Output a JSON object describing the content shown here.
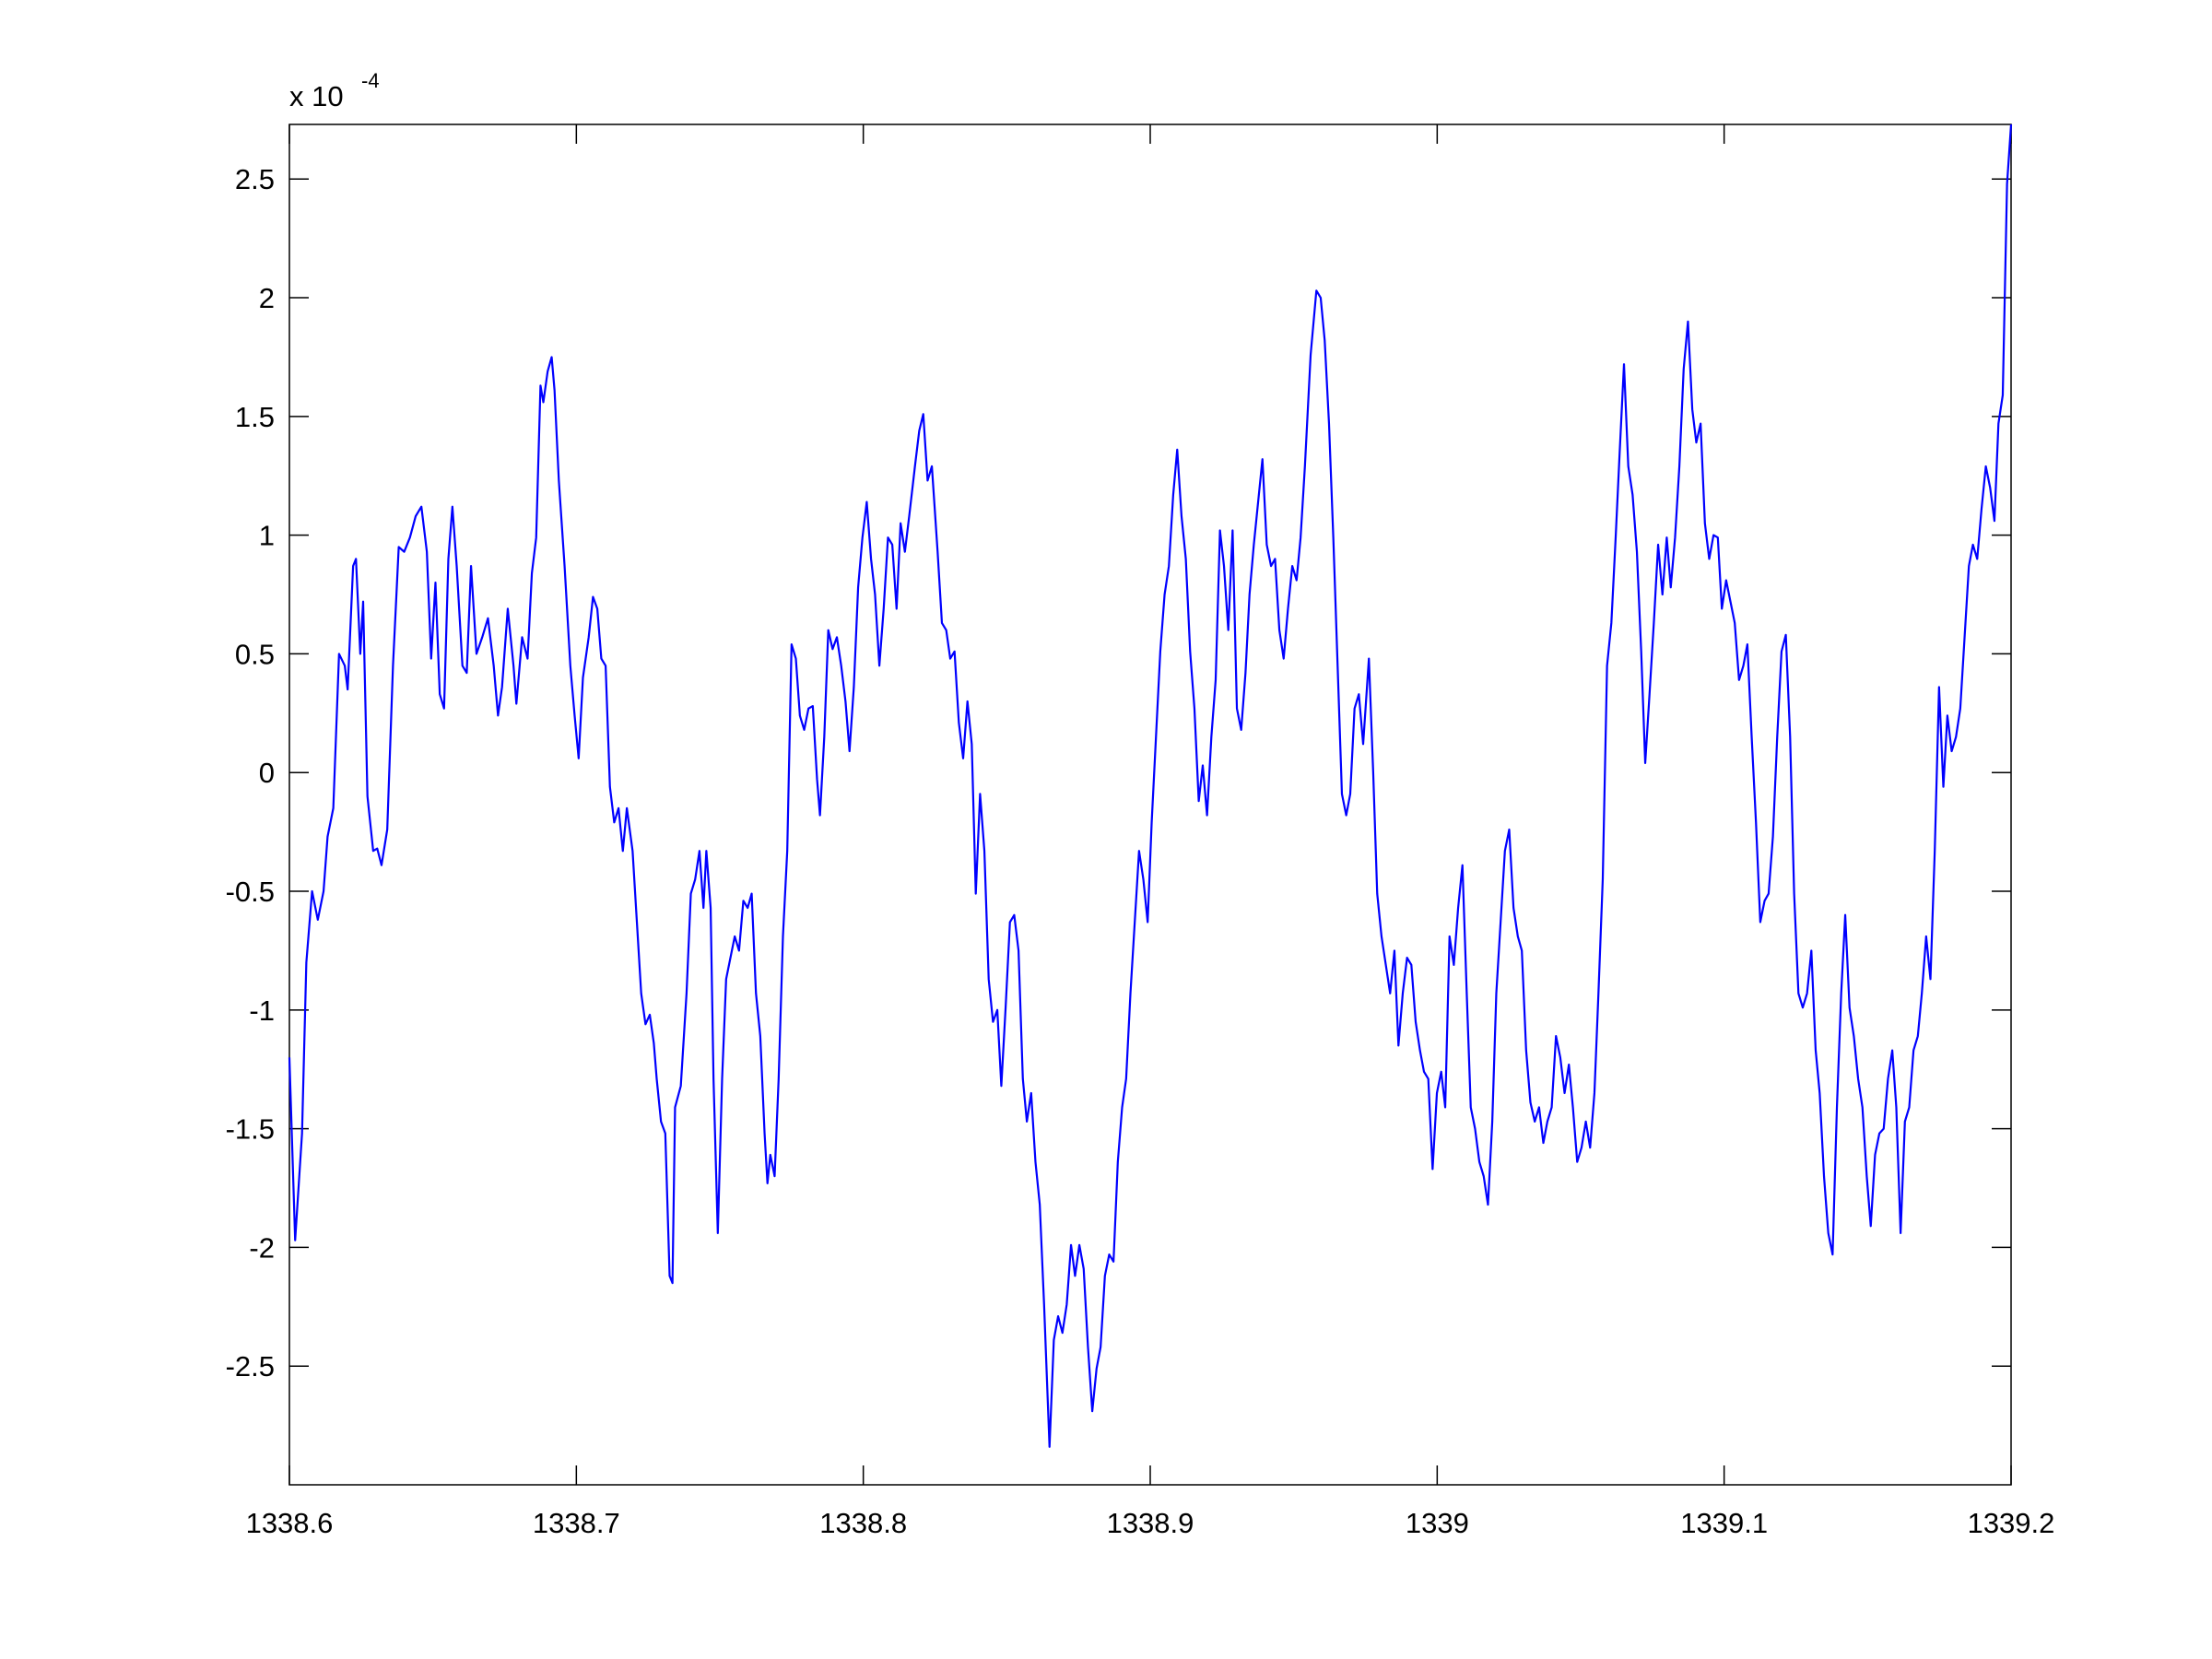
{
  "chart_data": {
    "type": "line",
    "y_multiplier": {
      "base": "x 10",
      "exponent": "-4"
    },
    "xlim": [
      1338.6,
      1339.2
    ],
    "xticks": [
      1338.6,
      1338.7,
      1338.8,
      1338.9,
      1339,
      1339.1,
      1339.2
    ],
    "ylim": [
      -3.0,
      2.73
    ],
    "yticks": [
      -2.5,
      -2,
      -1.5,
      -1,
      -0.5,
      0,
      0.5,
      1,
      1.5,
      2,
      2.5
    ],
    "grid": false,
    "series": [
      {
        "color": "#0000ff",
        "x": [
          1338.6,
          1338.602,
          1338.6044,
          1338.6059,
          1338.6079,
          1338.6099,
          1338.6119,
          1338.6133,
          1338.6153,
          1338.6173,
          1338.6193,
          1338.6203,
          1338.6222,
          1338.6232,
          1338.6247,
          1338.6257,
          1338.6272,
          1338.6292,
          1338.6306,
          1338.6321,
          1338.6341,
          1338.6361,
          1338.6381,
          1338.64,
          1338.642,
          1338.644,
          1338.646,
          1338.6479,
          1338.6494,
          1338.6509,
          1338.6524,
          1338.6539,
          1338.6554,
          1338.6568,
          1338.6583,
          1338.6603,
          1338.6618,
          1338.6633,
          1338.6652,
          1338.6672,
          1338.6692,
          1338.6712,
          1338.6727,
          1338.6741,
          1338.6761,
          1338.6781,
          1338.6791,
          1338.6811,
          1338.683,
          1338.6845,
          1338.686,
          1338.6875,
          1338.6885,
          1338.69,
          1338.6914,
          1338.6924,
          1338.6939,
          1338.6959,
          1338.6979,
          1338.6994,
          1338.7008,
          1338.7023,
          1338.7043,
          1338.7058,
          1338.7073,
          1338.7087,
          1338.7102,
          1338.7117,
          1338.7132,
          1338.7147,
          1338.7162,
          1338.7176,
          1338.7196,
          1338.7211,
          1338.7226,
          1338.7241,
          1338.7256,
          1338.727,
          1338.728,
          1338.7295,
          1338.731,
          1338.7325,
          1338.7335,
          1338.7344,
          1338.7364,
          1338.7384,
          1338.7399,
          1338.7414,
          1338.7429,
          1338.7443,
          1338.7453,
          1338.7468,
          1338.7478,
          1338.7493,
          1338.7508,
          1338.7522,
          1338.7537,
          1338.7552,
          1338.7567,
          1338.7582,
          1338.7597,
          1338.7611,
          1338.7626,
          1338.7641,
          1338.7656,
          1338.7666,
          1338.7676,
          1338.7691,
          1338.7705,
          1338.772,
          1338.7735,
          1338.775,
          1338.7765,
          1338.7779,
          1338.7794,
          1338.7809,
          1338.7824,
          1338.7839,
          1338.7849,
          1338.7864,
          1338.7878,
          1338.7893,
          1338.7908,
          1338.7923,
          1338.7938,
          1338.7952,
          1338.7967,
          1338.7982,
          1338.7997,
          1338.8012,
          1338.8027,
          1338.8041,
          1338.8056,
          1338.8071,
          1338.8086,
          1338.8101,
          1338.8116,
          1338.813,
          1338.8145,
          1338.816,
          1338.818,
          1338.8195,
          1338.8209,
          1338.8224,
          1338.8239,
          1338.8259,
          1338.8274,
          1338.8289,
          1338.8303,
          1338.8318,
          1338.8333,
          1338.8348,
          1338.8363,
          1338.8378,
          1338.8392,
          1338.8407,
          1338.8422,
          1338.8437,
          1338.8452,
          1338.8467,
          1338.8481,
          1338.8496,
          1338.8511,
          1338.8526,
          1338.8541,
          1338.8556,
          1338.857,
          1338.8585,
          1338.86,
          1338.8615,
          1338.863,
          1338.8649,
          1338.8664,
          1338.8679,
          1338.8694,
          1338.8709,
          1338.8724,
          1338.8738,
          1338.8753,
          1338.8768,
          1338.8783,
          1338.8798,
          1338.8813,
          1338.8827,
          1338.8842,
          1338.8857,
          1338.8872,
          1338.8887,
          1338.8902,
          1338.8916,
          1338.8931,
          1338.8946,
          1338.8961,
          1338.8976,
          1338.8991,
          1338.9005,
          1338.902,
          1338.9035,
          1338.905,
          1338.9065,
          1338.908,
          1338.9094,
          1338.9109,
          1338.9124,
          1338.9139,
          1338.9154,
          1338.9169,
          1338.9183,
          1338.9198,
          1338.9213,
          1338.9228,
          1338.9243,
          1338.9257,
          1338.9272,
          1338.9287,
          1338.9302,
          1338.9317,
          1338.9332,
          1338.9346,
          1338.9361,
          1338.9376,
          1338.9391,
          1338.9406,
          1338.9421,
          1338.9435,
          1338.945,
          1338.9465,
          1338.948,
          1338.9495,
          1338.951,
          1338.9524,
          1338.9539,
          1338.9559,
          1338.9579,
          1338.9594,
          1338.9608,
          1338.9623,
          1338.9638,
          1338.9653,
          1338.9668,
          1338.9683,
          1338.9697,
          1338.9712,
          1338.9727,
          1338.9742,
          1338.9762,
          1338.9777,
          1338.9791,
          1338.9806,
          1338.9821,
          1338.9836,
          1338.9851,
          1338.9865,
          1338.988,
          1338.9895,
          1338.991,
          1338.9925,
          1338.994,
          1338.9954,
          1338.9969,
          1338.9984,
          1338.9999,
          1339.0014,
          1339.0028,
          1339.0043,
          1339.0058,
          1339.0073,
          1339.0088,
          1339.0103,
          1339.0117,
          1339.0132,
          1339.0147,
          1339.0162,
          1339.0177,
          1339.0192,
          1339.0206,
          1339.0221,
          1339.0236,
          1339.0251,
          1339.0266,
          1339.0281,
          1339.0295,
          1339.031,
          1339.0325,
          1339.034,
          1339.0355,
          1339.037,
          1339.0384,
          1339.0399,
          1339.0414,
          1339.0429,
          1339.0444,
          1339.0459,
          1339.0473,
          1339.0488,
          1339.0503,
          1339.0518,
          1339.0533,
          1339.0548,
          1339.0562,
          1339.0577,
          1339.0592,
          1339.0607,
          1339.0622,
          1339.0636,
          1339.0651,
          1339.0666,
          1339.0681,
          1339.0696,
          1339.0711,
          1339.0725,
          1339.074,
          1339.0755,
          1339.077,
          1339.0785,
          1339.08,
          1339.0814,
          1339.0829,
          1339.0844,
          1339.0859,
          1339.0874,
          1339.0889,
          1339.0903,
          1339.0918,
          1339.0933,
          1339.0948,
          1339.0963,
          1339.0978,
          1339.0992,
          1339.1007,
          1339.1022,
          1339.1037,
          1339.1052,
          1339.1067,
          1339.1081,
          1339.1096,
          1339.1111,
          1339.1126,
          1339.1141,
          1339.1155,
          1339.117,
          1339.1185,
          1339.12,
          1339.1215,
          1339.123,
          1339.1244,
          1339.1259,
          1339.1274,
          1339.1289,
          1339.1304,
          1339.1319,
          1339.1333,
          1339.1348,
          1339.1363,
          1339.1378,
          1339.1393,
          1339.1408,
          1339.1422,
          1339.1437,
          1339.1452,
          1339.1467,
          1339.1482,
          1339.1497,
          1339.1511,
          1339.1526,
          1339.1541,
          1339.1556,
          1339.1571,
          1339.1586,
          1339.16,
          1339.1615,
          1339.163,
          1339.1645,
          1339.166,
          1339.1675,
          1339.1689,
          1339.1704,
          1339.1719,
          1339.1734,
          1339.1749,
          1339.1764,
          1339.1778,
          1339.1793,
          1339.1808,
          1339.1823,
          1339.1838,
          1339.1853,
          1339.1867,
          1339.1882,
          1339.1897,
          1339.1912,
          1339.1927,
          1339.1942,
          1339.1956,
          1339.1971,
          1339.1986,
          1339.2
        ],
        "values": [
          -1.2,
          -1.97,
          -1.52,
          -0.8,
          -0.5,
          -0.62,
          -0.5,
          -0.27,
          -0.15,
          0.5,
          0.45,
          0.35,
          0.87,
          0.9,
          0.5,
          0.72,
          -0.1,
          -0.33,
          -0.32,
          -0.39,
          -0.24,
          0.45,
          0.95,
          0.93,
          0.99,
          1.08,
          1.12,
          0.93,
          0.48,
          0.8,
          0.33,
          0.27,
          0.9,
          1.12,
          0.87,
          0.45,
          0.42,
          0.87,
          0.5,
          0.57,
          0.65,
          0.45,
          0.24,
          0.36,
          0.69,
          0.45,
          0.29,
          0.57,
          0.48,
          0.84,
          0.99,
          1.63,
          1.56,
          1.69,
          1.75,
          1.61,
          1.23,
          0.87,
          0.45,
          0.24,
          0.06,
          0.4,
          0.57,
          0.74,
          0.69,
          0.48,
          0.45,
          -0.06,
          -0.21,
          -0.15,
          -0.33,
          -0.15,
          -0.33,
          -0.63,
          -0.93,
          -1.06,
          -1.02,
          -1.14,
          -1.29,
          -1.47,
          -1.52,
          -2.12,
          -2.15,
          -1.41,
          -1.32,
          -0.93,
          -0.51,
          -0.45,
          -0.33,
          -0.57,
          -0.33,
          -0.57,
          -1.29,
          -1.94,
          -1.29,
          -0.87,
          -0.78,
          -0.69,
          -0.75,
          -0.54,
          -0.57,
          -0.51,
          -0.93,
          -1.11,
          -1.52,
          -1.73,
          -1.61,
          -1.7,
          -1.29,
          -0.69,
          -0.33,
          0.54,
          0.48,
          0.24,
          0.18,
          0.27,
          0.28,
          -0.03,
          -0.18,
          0.15,
          0.6,
          0.52,
          0.57,
          0.45,
          0.3,
          0.09,
          0.36,
          0.78,
          0.99,
          1.14,
          0.9,
          0.75,
          0.45,
          0.69,
          0.99,
          0.96,
          0.69,
          1.05,
          0.93,
          1.08,
          1.29,
          1.44,
          1.51,
          1.23,
          1.29,
          0.93,
          0.63,
          0.6,
          0.48,
          0.51,
          0.21,
          0.06,
          0.3,
          0.12,
          -0.51,
          -0.09,
          -0.33,
          -0.87,
          -1.05,
          -1.0,
          -1.32,
          -0.99,
          -0.63,
          -0.6,
          -0.75,
          -1.29,
          -1.47,
          -1.35,
          -1.64,
          -1.82,
          -2.24,
          -2.84,
          -2.39,
          -2.29,
          -2.36,
          -2.24,
          -1.99,
          -2.12,
          -1.99,
          -2.09,
          -2.42,
          -2.69,
          -2.51,
          -2.42,
          -2.12,
          -2.03,
          -2.06,
          -1.64,
          -1.41,
          -1.29,
          -0.93,
          -0.63,
          -0.33,
          -0.45,
          -0.63,
          -0.21,
          0.15,
          0.51,
          0.75,
          0.87,
          1.17,
          1.36,
          1.08,
          0.9,
          0.51,
          0.27,
          -0.12,
          0.03,
          -0.18,
          0.15,
          0.39,
          1.02,
          0.87,
          0.6,
          1.02,
          0.27,
          0.18,
          0.42,
          0.75,
          0.96,
          1.14,
          1.32,
          0.96,
          0.87,
          0.9,
          0.6,
          0.48,
          0.69,
          0.87,
          0.81,
          0.99,
          1.29,
          1.76,
          2.03,
          2.0,
          1.82,
          1.47,
          0.99,
          0.45,
          -0.09,
          -0.18,
          -0.09,
          0.27,
          0.33,
          0.12,
          0.48,
          0,
          -0.51,
          -0.69,
          -0.81,
          -0.93,
          -0.75,
          -1.15,
          -0.93,
          -0.78,
          -0.81,
          -1.05,
          -1.17,
          -1.26,
          -1.29,
          -1.67,
          -1.35,
          -1.26,
          -1.41,
          -0.69,
          -0.81,
          -0.57,
          -0.39,
          -0.93,
          -1.41,
          -1.5,
          -1.64,
          -1.7,
          -1.82,
          -1.47,
          -0.93,
          -0.63,
          -0.33,
          -0.24,
          -0.57,
          -0.69,
          -0.75,
          -1.17,
          -1.39,
          -1.47,
          -1.41,
          -1.56,
          -1.47,
          -1.41,
          -1.11,
          -1.2,
          -1.35,
          -1.23,
          -1.41,
          -1.64,
          -1.58,
          -1.47,
          -1.58,
          -1.35,
          -0.93,
          -0.45,
          0.45,
          0.63,
          0.99,
          1.35,
          1.72,
          1.29,
          1.17,
          0.93,
          0.51,
          0.04,
          0.33,
          0.63,
          0.96,
          0.75,
          0.99,
          0.78,
          0.99,
          1.29,
          1.7,
          1.9,
          1.53,
          1.39,
          1.47,
          1.05,
          0.9,
          1.0,
          0.99,
          0.69,
          0.81,
          0.72,
          0.63,
          0.39,
          0.45,
          0.54,
          0.15,
          -0.21,
          -0.63,
          -0.54,
          -0.51,
          -0.27,
          0.15,
          0.51,
          0.58,
          0.15,
          -0.51,
          -0.93,
          -0.99,
          -0.93,
          -0.75,
          -1.17,
          -1.35,
          -1.7,
          -1.94,
          -2.03,
          -1.41,
          -0.93,
          -0.6,
          -0.99,
          -1.11,
          -1.29,
          -1.41,
          -1.7,
          -1.91,
          -1.61,
          -1.52,
          -1.5,
          -1.29,
          -1.17,
          -1.41,
          -1.94,
          -1.47,
          -1.41,
          -1.17,
          -1.11,
          -0.93,
          -0.69,
          -0.87,
          -0.33,
          0.36,
          -0.06,
          0.24,
          0.09,
          0.15,
          0.27,
          0.57,
          0.87,
          0.96,
          0.9,
          1.11,
          1.29,
          1.2,
          1.06,
          1.47,
          1.59,
          2.48,
          2.73
        ]
      }
    ]
  }
}
